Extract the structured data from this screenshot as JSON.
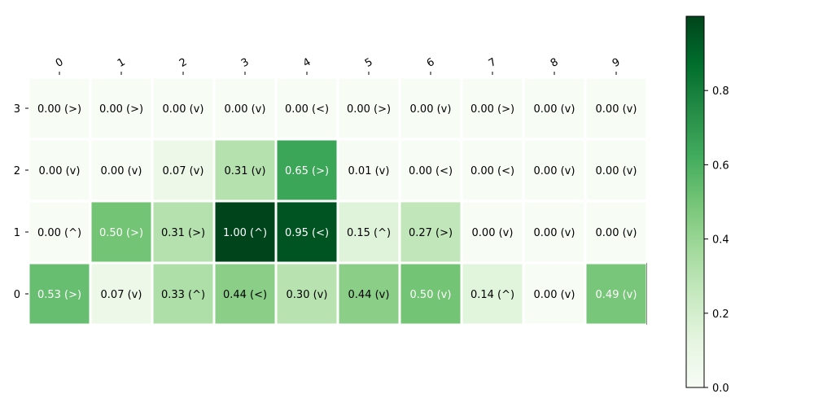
{
  "chart_data": {
    "type": "heatmap",
    "colormap": "Greens",
    "x_categories": [
      "0",
      "1",
      "2",
      "3",
      "4",
      "5",
      "6",
      "7",
      "8",
      "9"
    ],
    "y_categories": [
      "3",
      "2",
      "1",
      "0"
    ],
    "rows": [
      {
        "y": "3",
        "values": [
          0.0,
          0.0,
          0.0,
          0.0,
          0.0,
          0.0,
          0.0,
          0.0,
          0.0,
          0.0
        ],
        "labels": [
          "0.00 (>)",
          "0.00 (>)",
          "0.00 (v)",
          "0.00 (v)",
          "0.00 (<)",
          "0.00 (>)",
          "0.00 (v)",
          "0.00 (>)",
          "0.00 (v)",
          "0.00 (v)"
        ]
      },
      {
        "y": "2",
        "values": [
          0.0,
          0.0,
          0.07,
          0.31,
          0.65,
          0.01,
          0.0,
          0.0,
          0.0,
          0.0
        ],
        "labels": [
          "0.00 (v)",
          "0.00 (v)",
          "0.07 (v)",
          "0.31 (v)",
          "0.65 (>)",
          "0.01 (v)",
          "0.00 (<)",
          "0.00 (<)",
          "0.00 (v)",
          "0.00 (v)"
        ]
      },
      {
        "y": "1",
        "values": [
          0.0,
          0.5,
          0.31,
          1.0,
          0.95,
          0.15,
          0.27,
          0.0,
          0.0,
          0.0
        ],
        "labels": [
          "0.00 (^)",
          "0.50 (>)",
          "0.31 (>)",
          "1.00 (^)",
          "0.95 (<)",
          "0.15 (^)",
          "0.27 (>)",
          "0.00 (v)",
          "0.00 (v)",
          "0.00 (v)"
        ]
      },
      {
        "y": "0",
        "values": [
          0.53,
          0.07,
          0.33,
          0.44,
          0.3,
          0.44,
          0.5,
          0.14,
          0.0,
          0.49
        ],
        "labels": [
          "0.53 (>)",
          "0.07 (v)",
          "0.33 (^)",
          "0.44 (<)",
          "0.30 (v)",
          "0.44 (v)",
          "0.50 (v)",
          "0.14 (^)",
          "0.00 (v)",
          "0.49 (v)"
        ]
      }
    ],
    "colorbar": {
      "range": [
        0.0,
        1.0
      ],
      "ticks": [
        0.0,
        0.2,
        0.4,
        0.6,
        0.8
      ],
      "tick_labels": [
        "0.0",
        "0.2",
        "0.4",
        "0.6",
        "0.8"
      ]
    },
    "x_axis_position": "top",
    "grid": false,
    "title": "",
    "xlabel": "",
    "ylabel": ""
  }
}
